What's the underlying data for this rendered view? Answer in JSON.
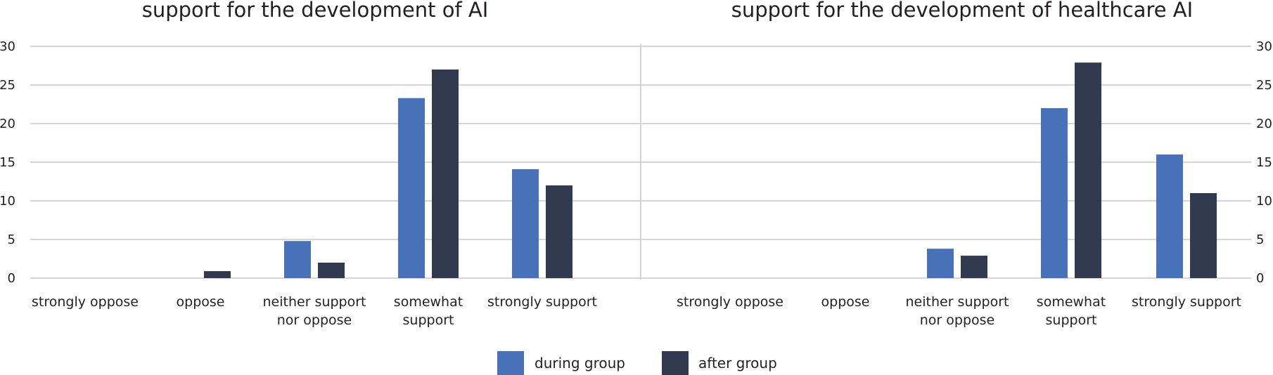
{
  "legend": {
    "during_label": "during group",
    "after_label": "after group"
  },
  "colors": {
    "during": "#4771b9",
    "after": "#313a4f",
    "grid": "#d5d5d5"
  },
  "chart_data": [
    {
      "type": "bar",
      "title": "support for the development of AI",
      "categories": [
        [
          "strongly oppose"
        ],
        [
          "oppose"
        ],
        [
          "neither support",
          "nor oppose"
        ],
        [
          "somewhat",
          "support"
        ],
        [
          "strongly support"
        ]
      ],
      "series": [
        {
          "name": "during group",
          "values": [
            0,
            0,
            4.8,
            23.3,
            14.1
          ]
        },
        {
          "name": "after group",
          "values": [
            0,
            0.9,
            2,
            27,
            12
          ]
        }
      ],
      "ylim": [
        0,
        30
      ],
      "yticks": [
        "0",
        "5",
        "10",
        "15",
        "20",
        "25",
        "30"
      ],
      "grid": true,
      "legend_position": "bottom"
    },
    {
      "type": "bar",
      "title": "support for the development of healthcare AI",
      "categories": [
        [
          "strongly oppose"
        ],
        [
          "oppose"
        ],
        [
          "neither support",
          "nor oppose"
        ],
        [
          "somewhat",
          "support"
        ],
        [
          "strongly support"
        ]
      ],
      "series": [
        {
          "name": "during group",
          "values": [
            0,
            0,
            3.8,
            22,
            16
          ]
        },
        {
          "name": "after group",
          "values": [
            0,
            0,
            2.9,
            27.9,
            11
          ]
        }
      ],
      "ylim": [
        0,
        30
      ],
      "yticks": [
        "0",
        "5",
        "10",
        "15",
        "20",
        "25",
        "30"
      ],
      "grid": true,
      "legend_position": "bottom"
    }
  ]
}
